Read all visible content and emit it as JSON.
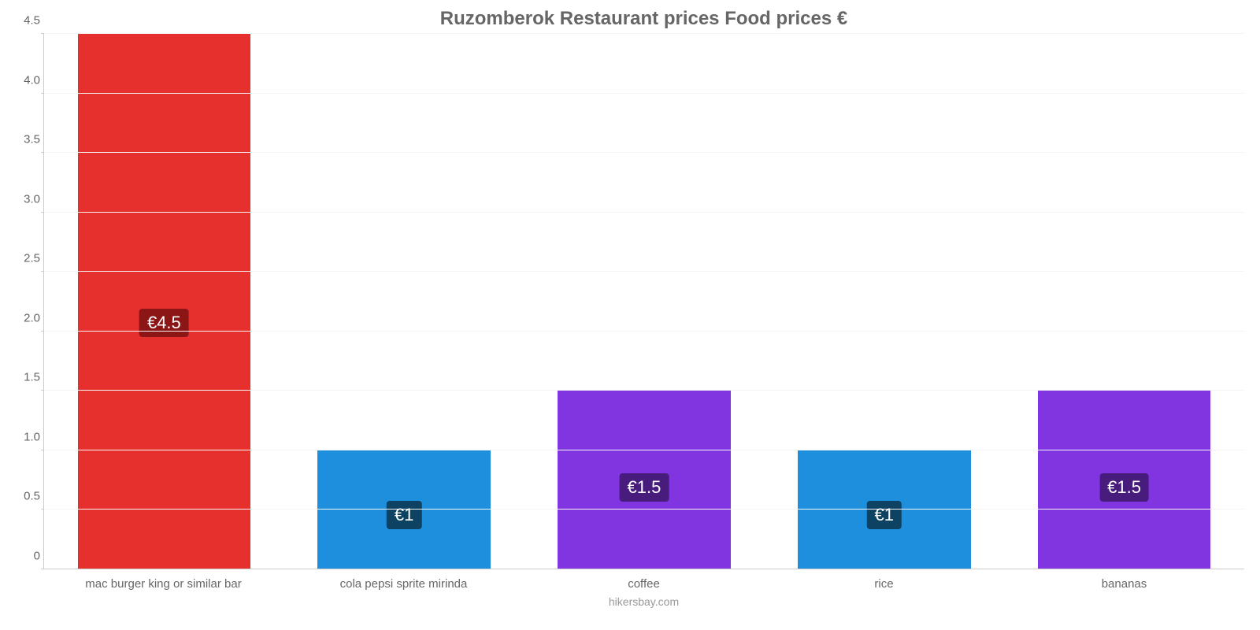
{
  "chart": {
    "type": "bar",
    "title": "Ruzomberok Restaurant prices Food prices €",
    "title_fontsize": 24,
    "title_color": "#666666",
    "credit": "hikersbay.com",
    "credit_color": "#999999",
    "background_color": "#ffffff",
    "grid_color": "#f4f4f4",
    "axis_color": "#cccccc",
    "tick_label_color": "#666666",
    "tick_label_fontsize": 15,
    "bar_label_fontsize": 22,
    "bar_label_text_color": "#ffffff",
    "bar_width": 0.72,
    "y": {
      "min": 0,
      "max": 4.5,
      "step": 0.5,
      "ticks": [
        "0",
        "0.5",
        "1.0",
        "1.5",
        "2.0",
        "2.5",
        "3.0",
        "3.5",
        "4.0",
        "4.5"
      ]
    },
    "categories": [
      "mac burger king or similar bar",
      "cola pepsi sprite mirinda",
      "coffee",
      "rice",
      "bananas"
    ],
    "values": [
      4.5,
      1.0,
      1.5,
      1.0,
      1.5
    ],
    "value_labels": [
      "€4.5",
      "€1",
      "€1.5",
      "€1",
      "€1.5"
    ],
    "bar_colors": [
      "#e6302e",
      "#1e8fdc",
      "#8035e0",
      "#1e8fdc",
      "#8035e0"
    ],
    "label_bg_colors": [
      "#8c1616",
      "#0e4263",
      "#471c7d",
      "#0e4263",
      "#471c7d"
    ]
  }
}
